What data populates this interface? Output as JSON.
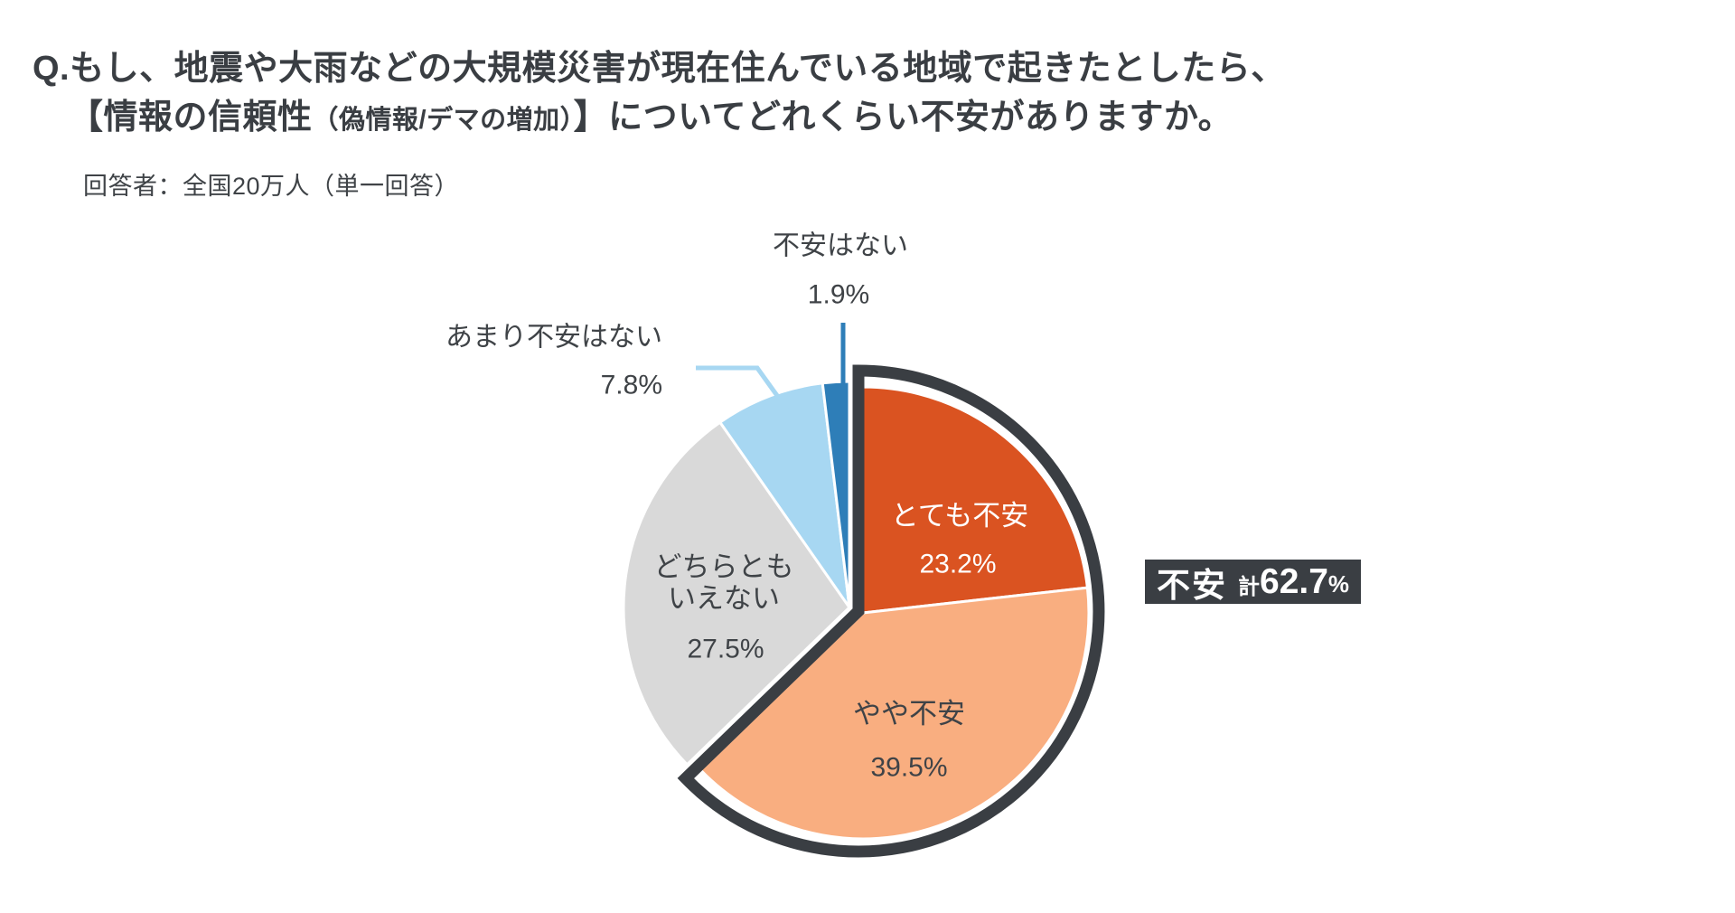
{
  "title": {
    "line1": "Q.もし、地震や大雨などの大規模災害が現在住んでいる地域で起きたとしたら、",
    "line2_prefix": "【情報の信頼性",
    "line2_small": "（偽情報/デマの増加）",
    "line2_suffix": "】についてどれくらい不安がありますか。",
    "subtitle": "回答者：全国20万人（単一回答）"
  },
  "chart_data": {
    "type": "pie",
    "unit": "%",
    "direction": "clockwise",
    "start_angle_deg": 0,
    "legend_position": "labels-on-and-around-pie",
    "slices": [
      {
        "label": "とても不安",
        "value": 23.2,
        "display": "23.2%",
        "color": "#DA5321",
        "text_color": "#FFFFFF",
        "in_emphasis_group": true
      },
      {
        "label": "やや不安",
        "value": 39.5,
        "display": "39.5%",
        "color": "#F9AE80",
        "text_color": "#3F4347",
        "in_emphasis_group": true
      },
      {
        "label": "どちらともいえない",
        "value": 27.5,
        "display": "27.5%",
        "color": "#D9D9D9",
        "text_color": "#3F4347",
        "in_emphasis_group": false
      },
      {
        "label": "あまり不安はない",
        "value": 7.8,
        "display": "7.8%",
        "color": "#A7D7F2",
        "text_color": "#3F4347",
        "in_emphasis_group": false
      },
      {
        "label": "不安はない",
        "value": 1.9,
        "display": "1.9%",
        "color": "#2E7EB8",
        "text_color": "#3F4347",
        "in_emphasis_group": false
      }
    ],
    "emphasis": {
      "label": "不安",
      "prefix": "計",
      "value": 62.7,
      "display": "62.7",
      "unit": "%",
      "badge_bg": "#3A3E43",
      "badge_text_color": "#FFFFFF",
      "outline_color": "#3A3E43"
    }
  }
}
